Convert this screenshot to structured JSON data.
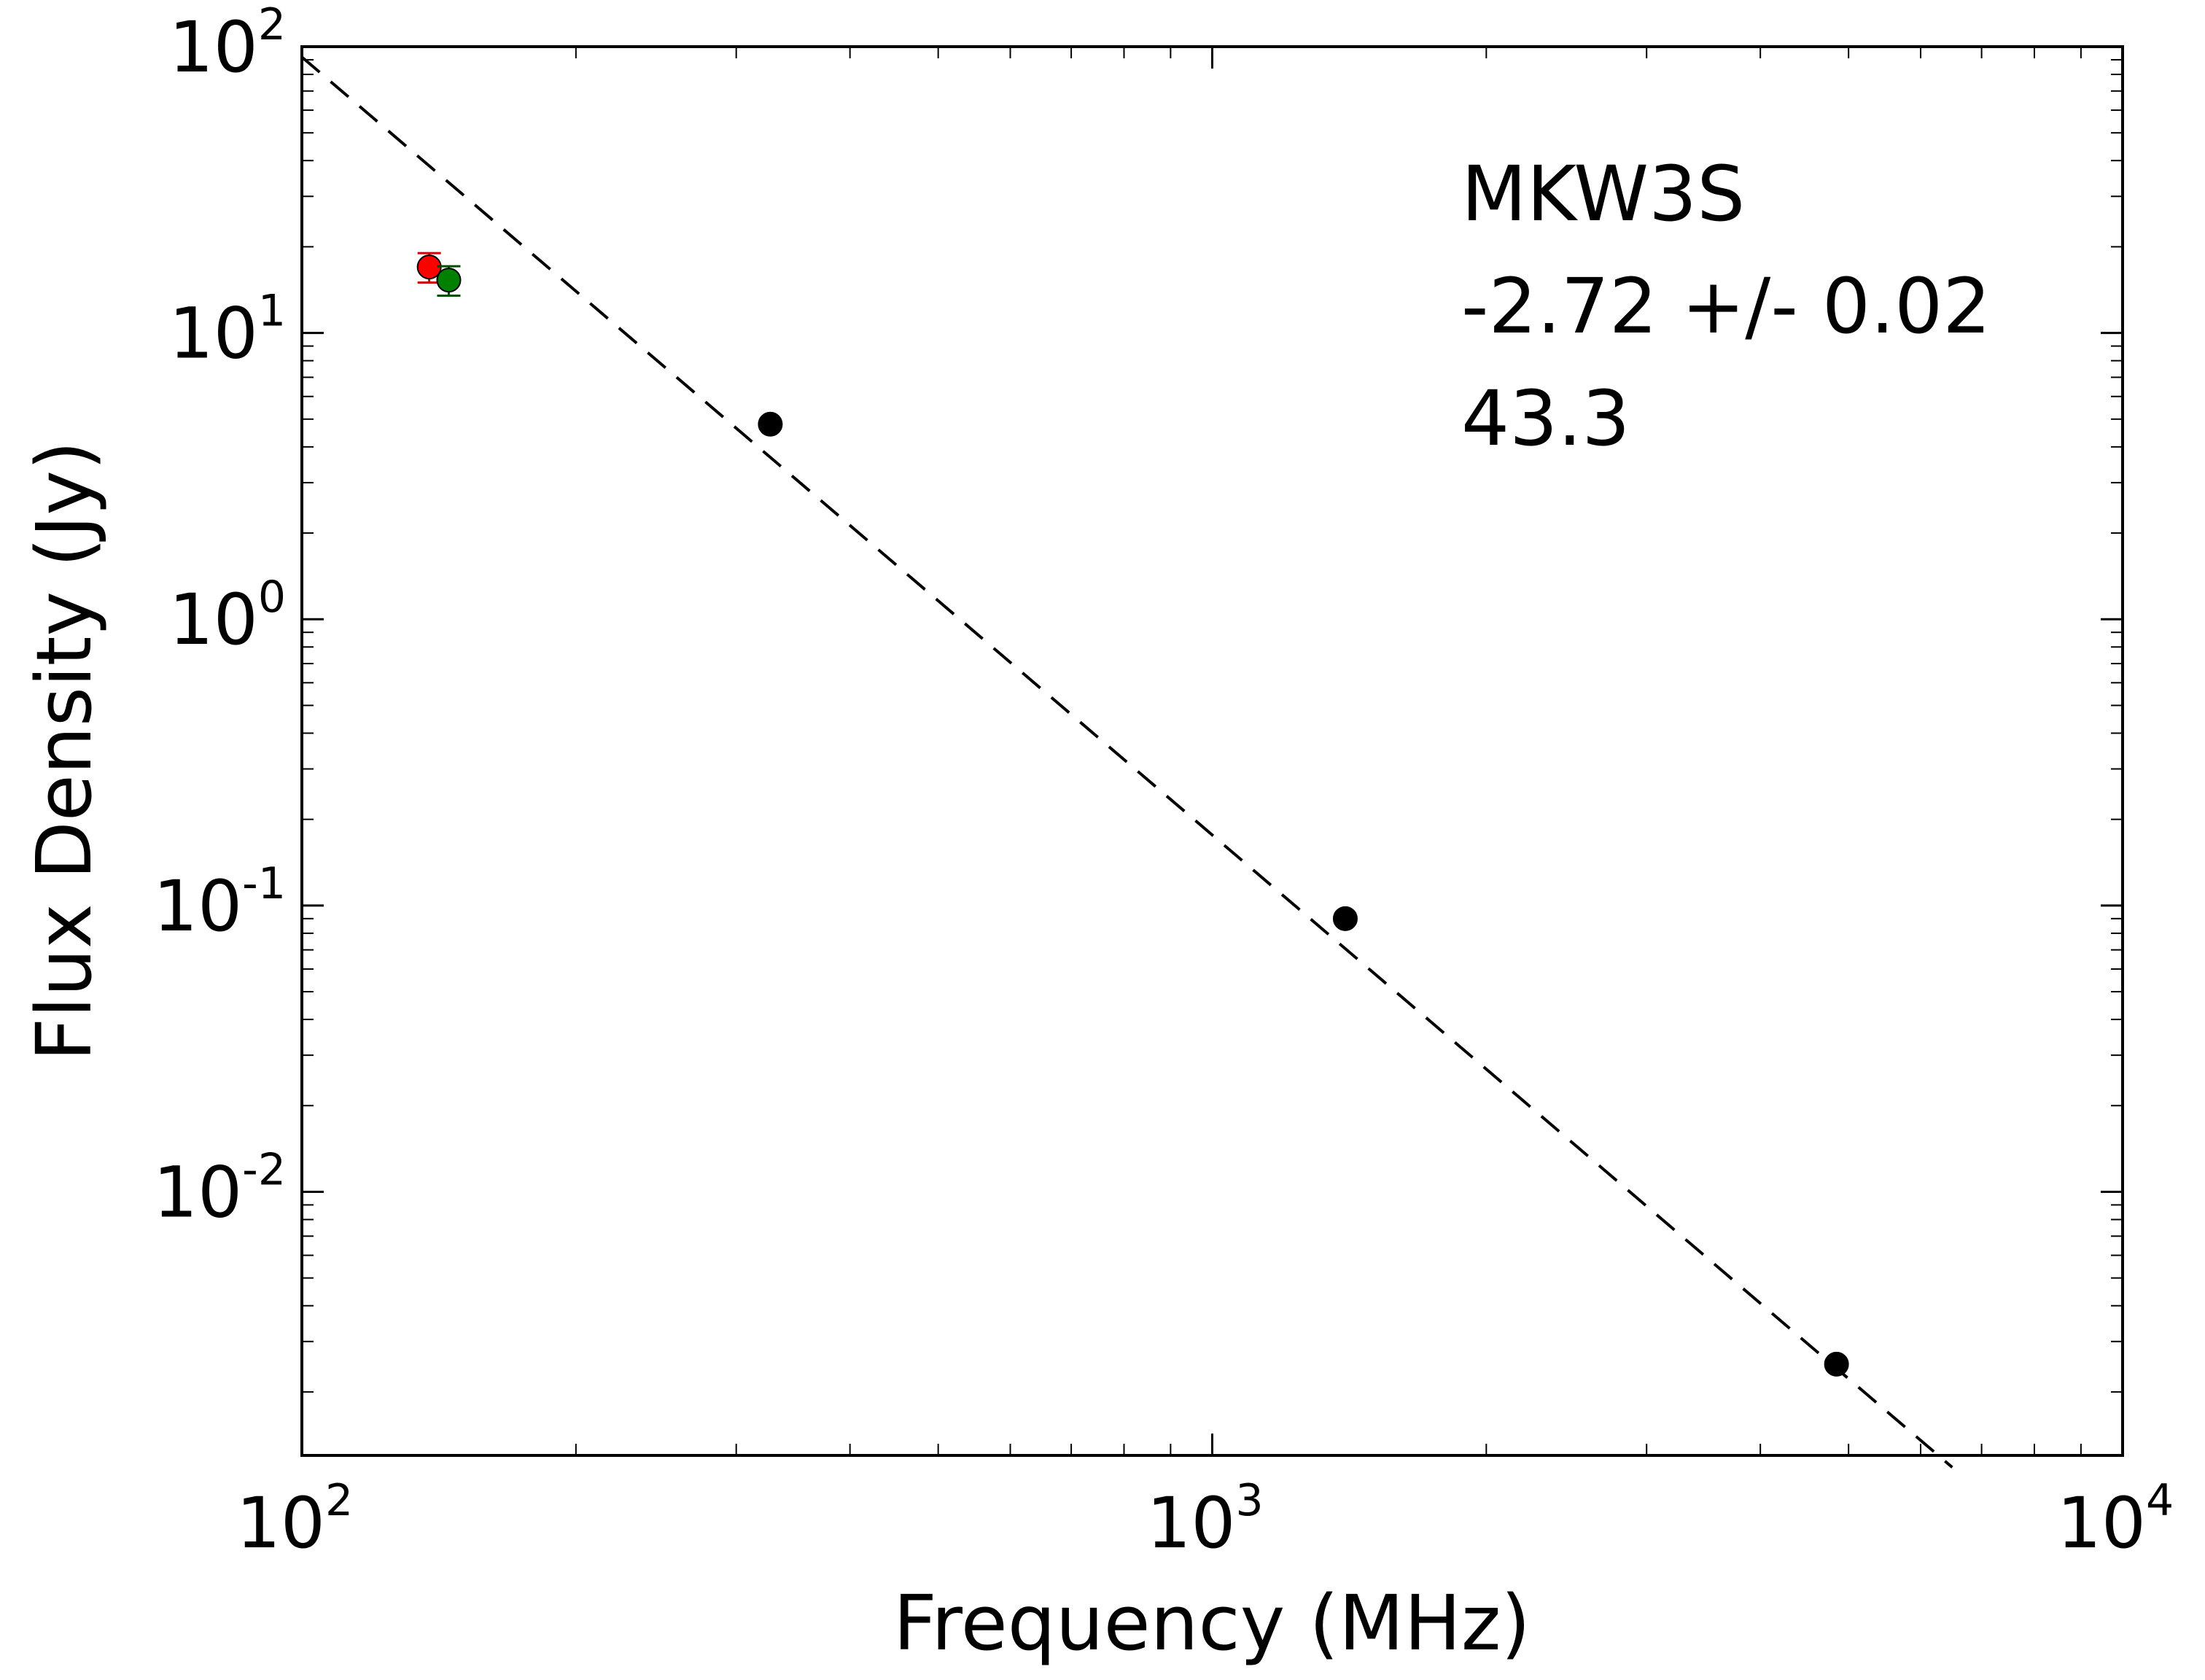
{
  "chart_data": {
    "type": "scatter",
    "xscale": "log",
    "yscale": "log",
    "xlim": [
      100,
      10000
    ],
    "ylim": [
      0.0012,
      100
    ],
    "xlabel": "Frequency (MHz)",
    "ylabel": "Flux Density (Jy)",
    "x_ticks": [
      {
        "base": "10",
        "exp": "2",
        "value": 100
      },
      {
        "base": "10",
        "exp": "3",
        "value": 1000
      },
      {
        "base": "10",
        "exp": "4",
        "value": 10000
      }
    ],
    "y_ticks": [
      {
        "base": "10",
        "exp": "2",
        "value": 100
      },
      {
        "base": "10",
        "exp": "1",
        "value": 10
      },
      {
        "base": "10",
        "exp": "0",
        "value": 1
      },
      {
        "base": "10",
        "exp": "-1",
        "value": 0.1
      },
      {
        "base": "10",
        "exp": "-2",
        "value": 0.01
      }
    ],
    "annotations": [
      "MKW3S",
      "-2.72 +/- 0.02",
      "43.3"
    ],
    "series": [
      {
        "color": "#ff0000",
        "errorbar_color": "#cc0000",
        "points": [
          {
            "x": 138,
            "y": 17.0,
            "yerr_lo": 2.0,
            "yerr_hi": 2.0
          }
        ]
      },
      {
        "color": "#008000",
        "errorbar_color": "#004d00",
        "points": [
          {
            "x": 145,
            "y": 15.3,
            "yerr_lo": 1.8,
            "yerr_hi": 1.8
          }
        ]
      },
      {
        "color": "#000000",
        "errorbar_color": "#000000",
        "points": [
          {
            "x": 327,
            "y": 4.8
          },
          {
            "x": 1400,
            "y": 0.09
          },
          {
            "x": 4850,
            "y": 0.0025
          }
        ]
      }
    ],
    "fit_line": {
      "style": "dashed",
      "color": "#000000",
      "x": [
        100,
        6500
      ],
      "y": [
        92,
        0.00109
      ]
    },
    "grid": false
  }
}
